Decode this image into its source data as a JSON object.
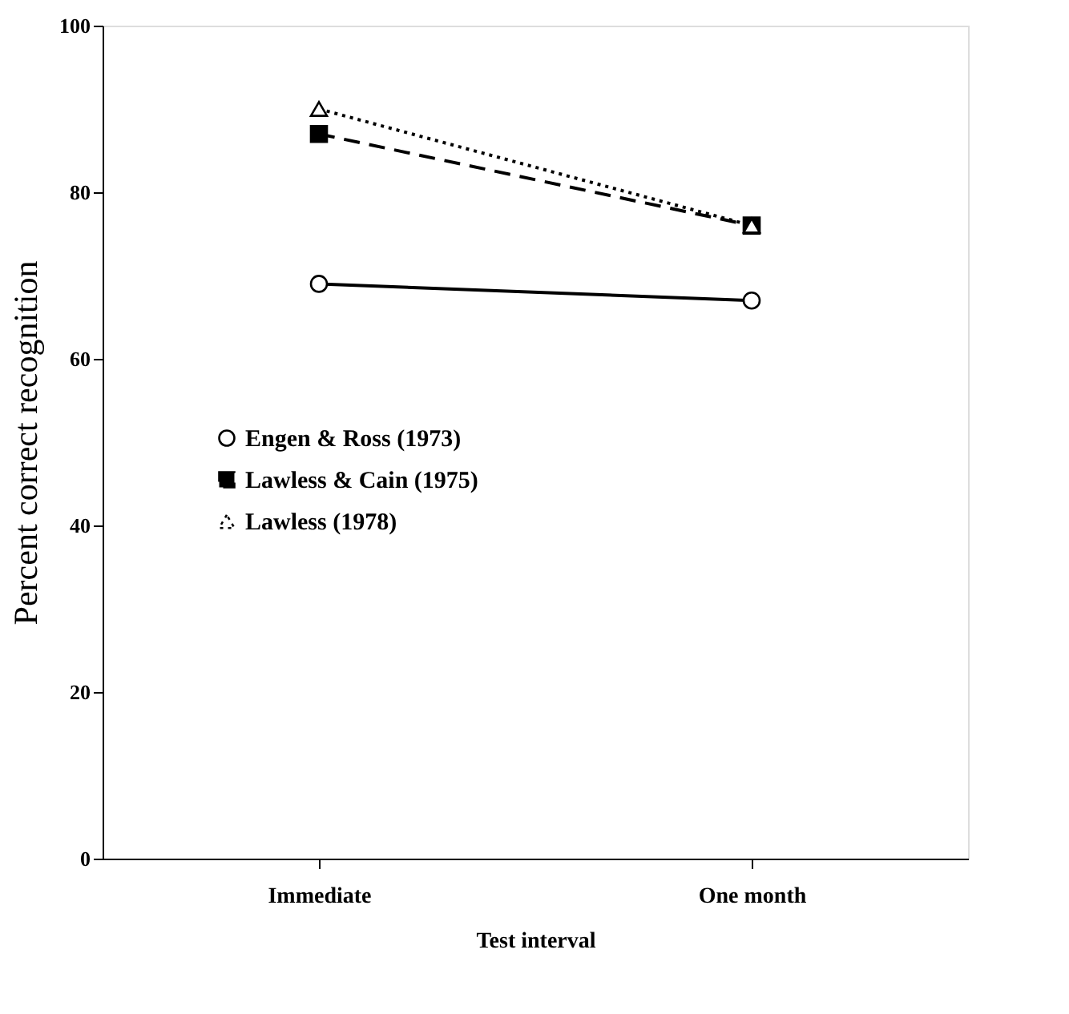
{
  "chart_data": {
    "type": "line",
    "xlabel": "Test interval",
    "ylabel": "Percent correct recognition",
    "categories": [
      "Immediate",
      "One month"
    ],
    "ylim": [
      0,
      100
    ],
    "yticks": [
      0,
      20,
      40,
      60,
      80,
      100
    ],
    "grid": false,
    "legend": "left",
    "series": [
      {
        "name": "Engen & Ross (1973)",
        "color": "#000000",
        "values": [
          69,
          67
        ],
        "marker": "circle",
        "line_style": "solid"
      },
      {
        "name": "Lawless & Cain (1975)",
        "color": "#000000",
        "values": [
          87,
          76
        ],
        "marker": "square",
        "line_style": "dashed"
      },
      {
        "name": "Lawless (1978)",
        "color": "#000000",
        "values": [
          90,
          76
        ],
        "marker": "triangle",
        "line_style": "dotted"
      }
    ]
  }
}
